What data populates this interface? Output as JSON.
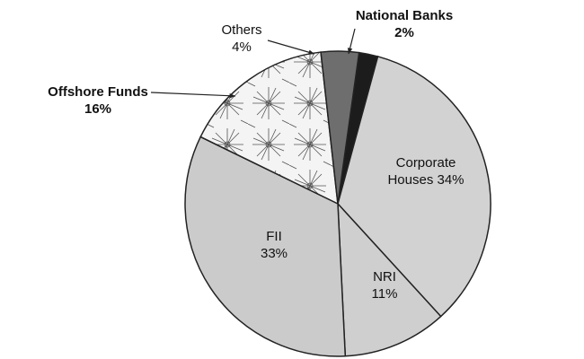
{
  "chart_data": {
    "type": "pie",
    "title": "",
    "slices": [
      {
        "name": "National Banks",
        "line1": "National Banks",
        "line2": "2%",
        "value": 2,
        "color": "#1c1c1c"
      },
      {
        "name": "Corporate Houses",
        "line1": "Corporate",
        "line2": "Houses 34%",
        "value": 34,
        "color": "#d2d2d2"
      },
      {
        "name": "NRI",
        "line1": "NRI",
        "line2": "11%",
        "value": 11,
        "color": "#cfcfcf"
      },
      {
        "name": "FII",
        "line1": "FII",
        "line2": "33%",
        "value": 33,
        "color": "#cbcbcb"
      },
      {
        "name": "Offshore Funds",
        "line1": "Offshore Funds",
        "line2": "16%",
        "value": 16,
        "color": "#f2f2f2",
        "pattern": "starburst"
      },
      {
        "name": "Others",
        "line1": "Others",
        "line2": "4%",
        "value": 4,
        "color": "#6e6e6e"
      }
    ],
    "legend": "none",
    "start_angle_deg": 8
  }
}
